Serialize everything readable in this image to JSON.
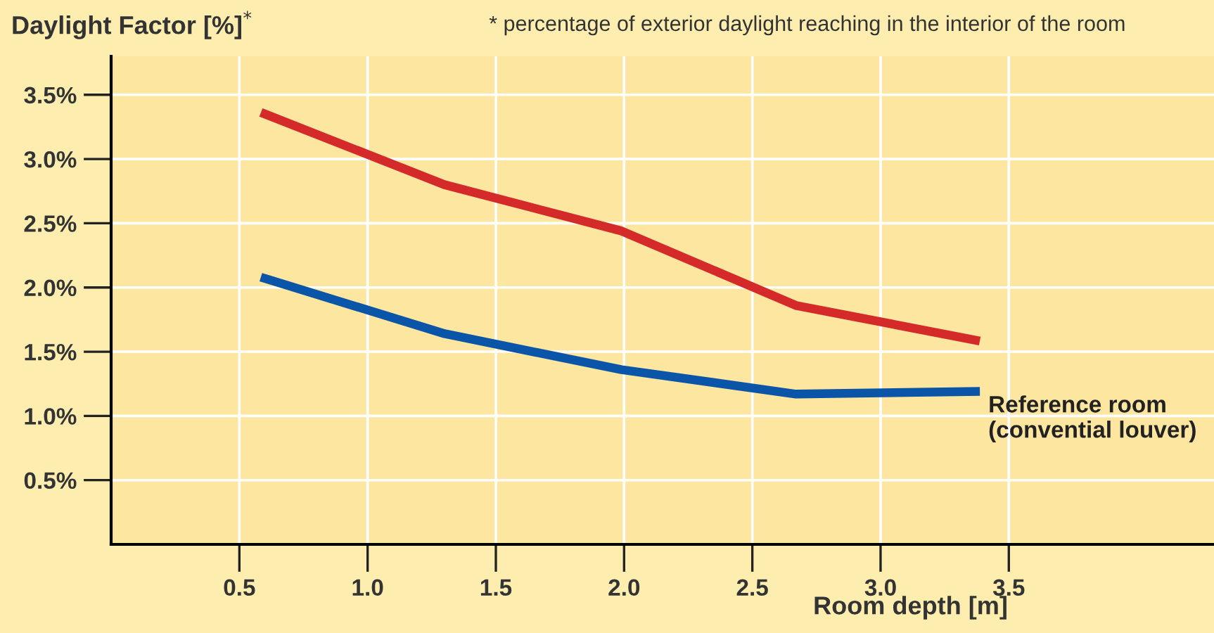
{
  "chart_data": {
    "type": "line",
    "ylabel": "Daylight Factor [%]$^{*}$",
    "xlabel": "Room depth [m]",
    "annotations": [
      "* percentage of exterior daylight reaching in the interior of the room"
    ],
    "xlim": [
      0,
      4.3
    ],
    "ylim": [
      0,
      3.8
    ],
    "xticks": [
      {
        "value": 0.5,
        "label": "0.5"
      },
      {
        "value": 1.0,
        "label": "1.0"
      },
      {
        "value": 1.5,
        "label": "1.5"
      },
      {
        "value": 2.0,
        "label": "2.0"
      },
      {
        "value": 2.5,
        "label": "2.5"
      },
      {
        "value": 3.0,
        "label": "3.0"
      },
      {
        "value": 3.5,
        "label": "3.5"
      }
    ],
    "yticks": [
      {
        "value": 0.5,
        "label": "0.5%"
      },
      {
        "value": 1.0,
        "label": "1.0%"
      },
      {
        "value": 1.5,
        "label": "1.5%"
      },
      {
        "value": 2.0,
        "label": "2.0%"
      },
      {
        "value": 2.5,
        "label": "2.5%"
      },
      {
        "value": 3.0,
        "label": "3.0%"
      },
      {
        "value": 3.5,
        "label": "3.5%"
      }
    ],
    "grid": true,
    "legend": false,
    "marker": "none",
    "line_style": "solid",
    "x": [
      0.6,
      1.3,
      1.99,
      2.67,
      3.37
    ],
    "series": [
      {
        "color": "#d42a2a",
        "values": [
          3.35,
          2.8,
          2.44,
          1.86,
          1.59
        ]
      },
      {
        "name": "Reference room (convential louver)",
        "color": "#0a55a8",
        "values": [
          2.07,
          1.64,
          1.36,
          1.17,
          1.19
        ]
      }
    ]
  }
}
